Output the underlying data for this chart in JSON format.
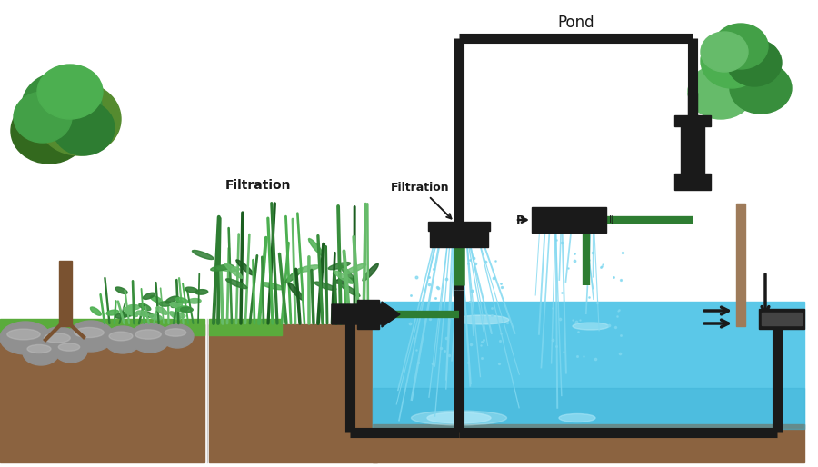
{
  "bg_color": "#ffffff",
  "pipe_color": "#1a1a1a",
  "green_pipe_color": "#2e7d32",
  "water_light": "#5bc8e8",
  "water_mid": "#40b4d8",
  "water_stream": "#80d8f0",
  "soil_brown": "#8b6340",
  "soil_dark": "#6b4a28",
  "grass_green": "#5aab3c",
  "rock_gray": "#909090",
  "rock_light": "#bbbbbb",
  "tree_trunk_brown": "#7a5230",
  "tree_dark": "#2e7d32",
  "tree_mid": "#43a047",
  "tree_light": "#66bb6a",
  "tree_trunk_right": "#9e7b5a",
  "pond_label": "Pond",
  "filtration_left_label": "Filtration",
  "filtration_right_label": "Filtration",
  "pump_p_label": "P",
  "pipe_lw": 6,
  "pipe_lw_thick": 8,
  "fig_w": 9.0,
  "fig_h": 5.14,
  "dpi": 100,
  "xlim": [
    0,
    9.0
  ],
  "ylim": [
    0,
    5.14
  ]
}
